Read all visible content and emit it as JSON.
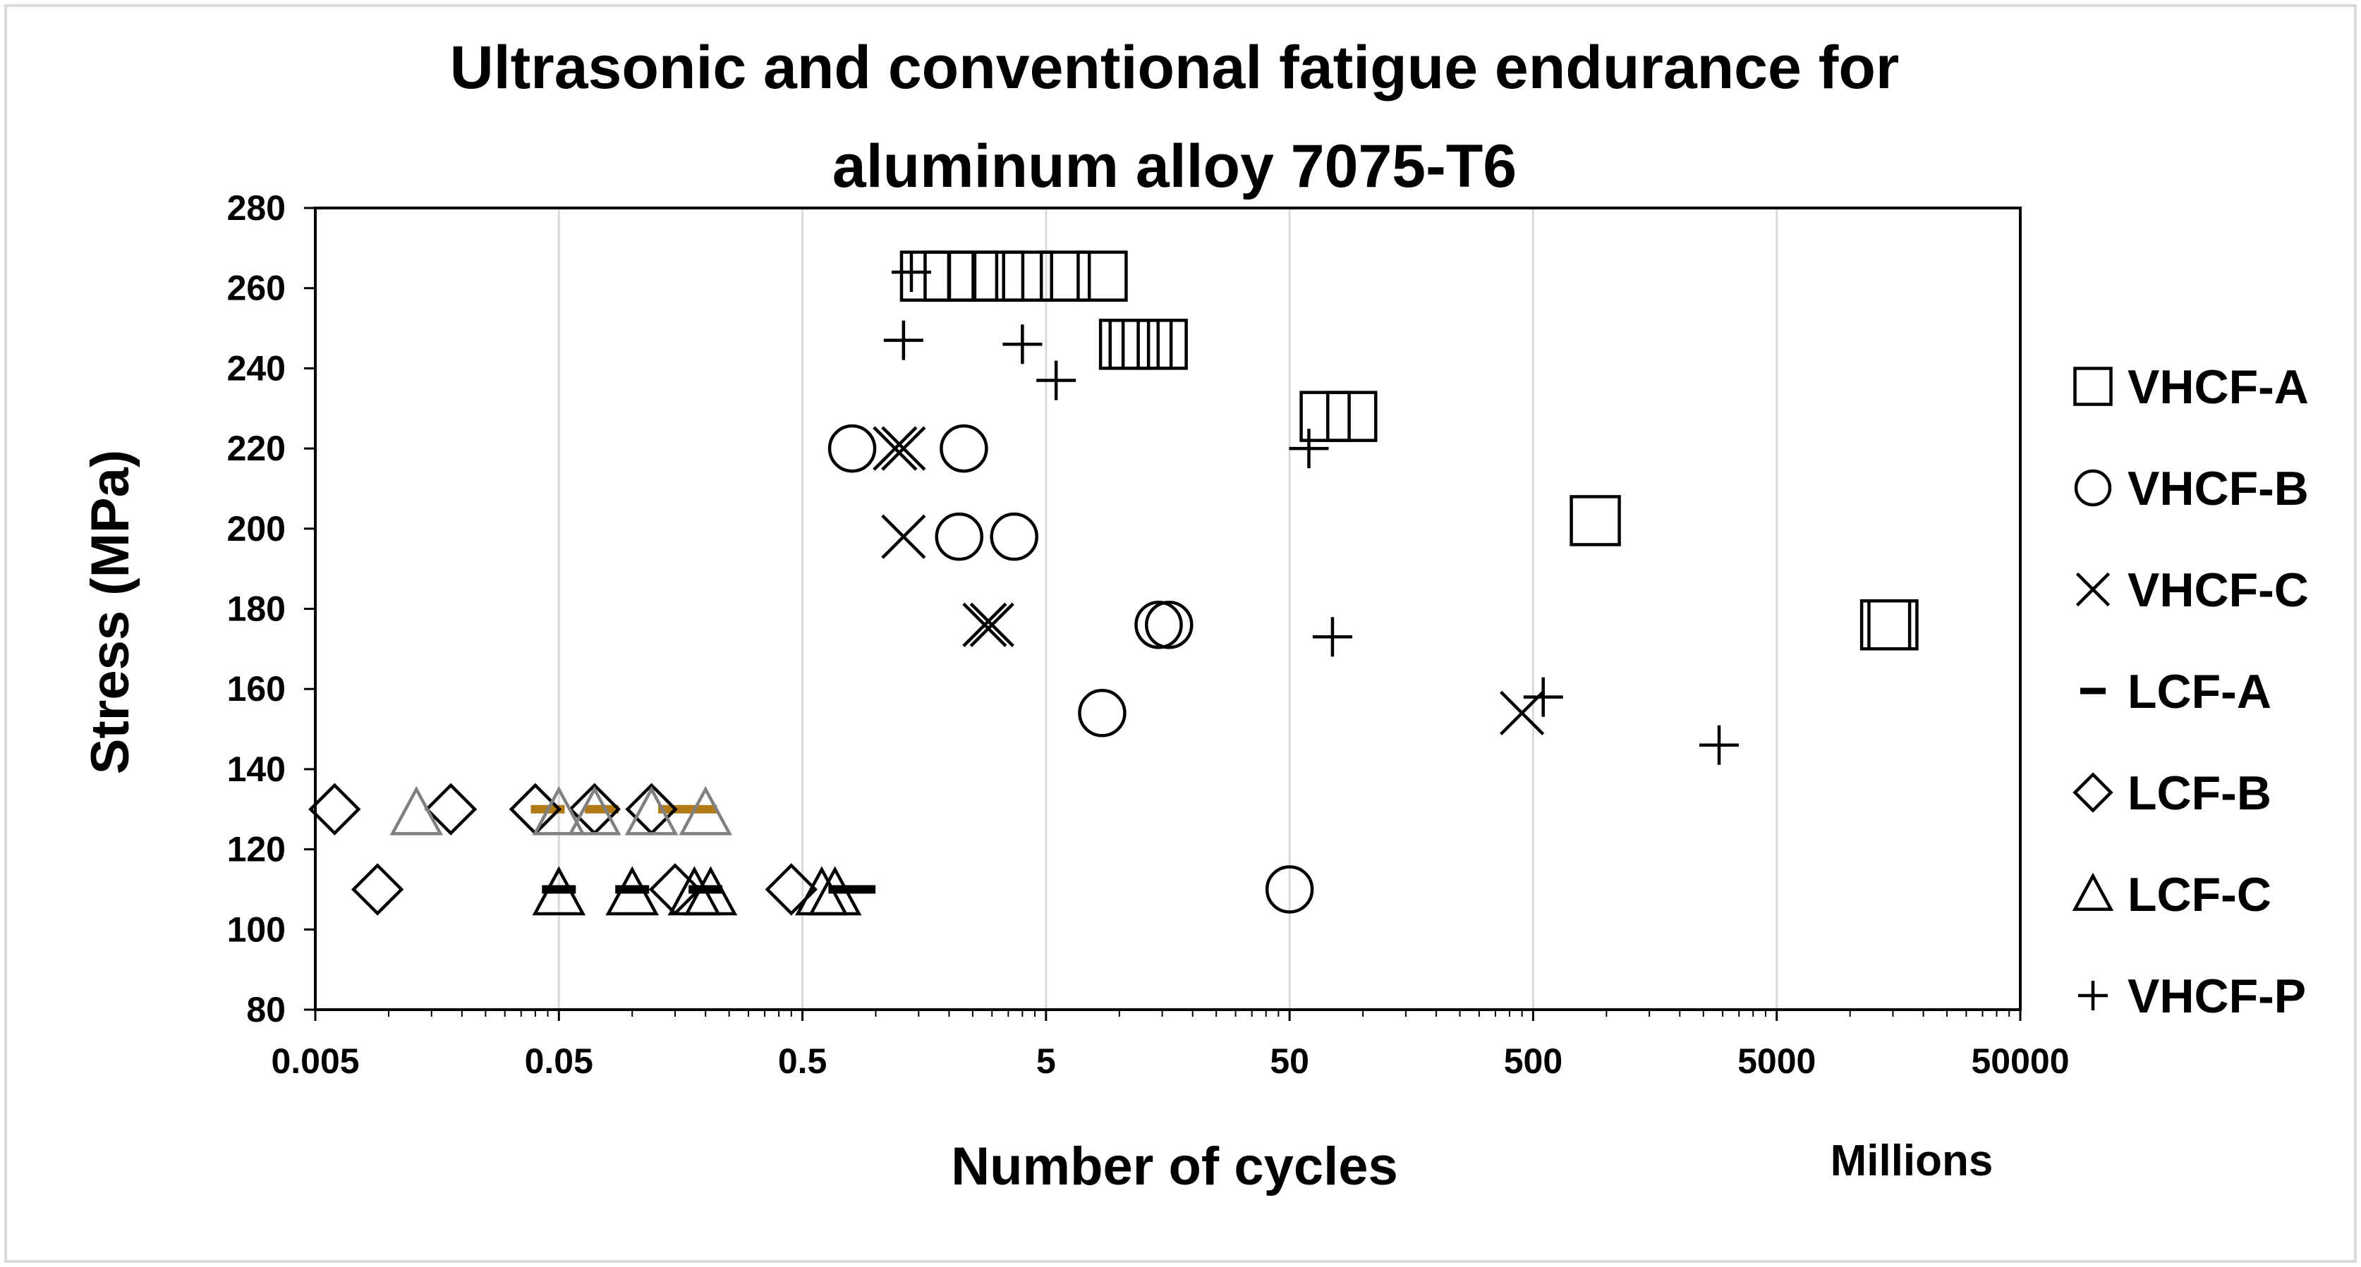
{
  "chart_data": {
    "type": "scatter",
    "title": "Ultrasonic and conventional fatigue endurance for aluminum alloy 7075-T6",
    "title_lines": [
      "Ultrasonic and conventional fatigue endurance for",
      "aluminum alloy 7075-T6"
    ],
    "xlabel": "Number of cycles",
    "ylabel": "Stress (MPa)",
    "x_unit_label": "Millions",
    "x_scale": "log",
    "xlim": [
      0.005,
      50000
    ],
    "ylim": [
      80,
      280
    ],
    "x_ticks": [
      "0.005",
      "0.05",
      "0.5",
      "5",
      "50",
      "500",
      "5000",
      "50000"
    ],
    "x_tick_values": [
      0.005,
      0.05,
      0.5,
      5,
      50,
      500,
      5000,
      50000
    ],
    "y_ticks": [
      "80",
      "100",
      "120",
      "140",
      "160",
      "180",
      "200",
      "220",
      "240",
      "260",
      "280"
    ],
    "y_tick_values": [
      80,
      100,
      120,
      140,
      160,
      180,
      200,
      220,
      240,
      260,
      280
    ],
    "grid": "vertical major gridlines",
    "legend_position": "right",
    "series": [
      {
        "name": "VHCF-A",
        "marker": "square",
        "color": "#000000",
        "points": [
          [
            1.6,
            263
          ],
          [
            2.0,
            263
          ],
          [
            2.5,
            263
          ],
          [
            3.2,
            263
          ],
          [
            4.2,
            263
          ],
          [
            6.0,
            263
          ],
          [
            8.5,
            263
          ],
          [
            10.5,
            246
          ],
          [
            11.5,
            246
          ],
          [
            13.0,
            246
          ],
          [
            15.0,
            246
          ],
          [
            70,
            228
          ],
          [
            90,
            228
          ],
          [
            900,
            202
          ],
          [
            14000,
            176
          ],
          [
            15000,
            176
          ]
        ]
      },
      {
        "name": "VHCF-B",
        "marker": "circle",
        "color": "#000000",
        "points": [
          [
            0.8,
            220
          ],
          [
            2.3,
            220
          ],
          [
            2.2,
            198
          ],
          [
            3.7,
            198
          ],
          [
            14.5,
            176
          ],
          [
            16,
            176
          ],
          [
            8.5,
            154
          ],
          [
            50,
            110
          ]
        ]
      },
      {
        "name": "VHCF-C",
        "marker": "x",
        "color": "#000000",
        "points": [
          [
            1.2,
            220
          ],
          [
            1.3,
            220
          ],
          [
            1.3,
            198
          ],
          [
            2.8,
            176
          ],
          [
            3.0,
            176
          ],
          [
            450,
            154
          ]
        ]
      },
      {
        "name": "LCF-A",
        "marker": "dash",
        "color": "#000000",
        "points": [
          [
            0.05,
            110
          ],
          [
            0.1,
            110
          ],
          [
            0.2,
            110
          ],
          [
            0.75,
            110
          ],
          [
            0.85,
            110
          ]
        ]
      },
      {
        "name": "LCF-A",
        "marker": "dash",
        "color": "#b07b16",
        "points": [
          [
            0.045,
            130
          ],
          [
            0.075,
            130
          ],
          [
            0.15,
            130
          ],
          [
            0.19,
            130
          ]
        ]
      },
      {
        "name": "LCF-B",
        "marker": "diamond",
        "color": "#000000",
        "points": [
          [
            0.006,
            130
          ],
          [
            0.018,
            130
          ],
          [
            0.04,
            130
          ],
          [
            0.07,
            130
          ],
          [
            0.12,
            130
          ],
          [
            0.009,
            110
          ],
          [
            0.15,
            110
          ],
          [
            0.45,
            110
          ]
        ]
      },
      {
        "name": "LCF-C",
        "marker": "triangle",
        "color": "#000000",
        "points": [
          [
            0.05,
            109
          ],
          [
            0.1,
            109
          ],
          [
            0.18,
            109
          ],
          [
            0.21,
            109
          ],
          [
            0.6,
            109
          ],
          [
            0.68,
            109
          ]
        ]
      },
      {
        "name": "LCF-C",
        "marker": "triangle",
        "color": "#808080",
        "points": [
          [
            0.013,
            129
          ],
          [
            0.05,
            129
          ],
          [
            0.07,
            129
          ],
          [
            0.12,
            129
          ],
          [
            0.2,
            129
          ]
        ]
      },
      {
        "name": "VHCF-P",
        "marker": "plus",
        "color": "#000000",
        "points": [
          [
            1.4,
            264
          ],
          [
            1.3,
            247
          ],
          [
            4.0,
            246
          ],
          [
            5.5,
            237
          ],
          [
            60,
            220
          ],
          [
            75,
            173
          ],
          [
            550,
            158
          ],
          [
            2900,
            146
          ]
        ]
      }
    ],
    "legend": [
      {
        "label": "VHCF-A",
        "marker": "square"
      },
      {
        "label": "VHCF-B",
        "marker": "circle"
      },
      {
        "label": "VHCF-C",
        "marker": "x"
      },
      {
        "label": "LCF-A",
        "marker": "dash"
      },
      {
        "label": "LCF-B",
        "marker": "diamond"
      },
      {
        "label": "LCF-C",
        "marker": "triangle"
      },
      {
        "label": "VHCF-P",
        "marker": "plus"
      }
    ]
  }
}
